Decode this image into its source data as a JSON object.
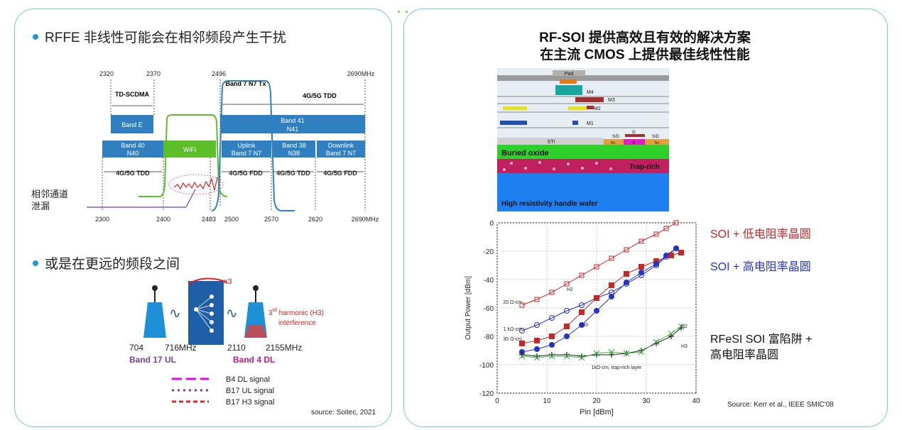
{
  "left": {
    "bullet1": "RFFE 非线性可能会在相邻频段产生干扰",
    "bullet2": "或是在更远的频段之间",
    "source": "source: Soitec, 2021",
    "band_diagram": {
      "top_freqs": [
        "2320",
        "2370",
        "2496",
        "2690MHz"
      ],
      "bottom_freqs": [
        "2300",
        "2400",
        "2483",
        "2500",
        "2570",
        "2620",
        "2690MHz"
      ],
      "td_scdma": "TD-SCDMA",
      "band7_tx": "Band 7 N7 Tx",
      "tdd_top": "4G/5G TDD",
      "band_e": "Band E",
      "band41": [
        "Band 41",
        "N41"
      ],
      "band40": [
        "Band 40",
        "N40"
      ],
      "wifi": "WiFi",
      "uplink": [
        "Uplink",
        "Band 7 N7"
      ],
      "band38": [
        "Band 38",
        "N38"
      ],
      "downlink": [
        "Downlink",
        "Band 7 N7"
      ],
      "bottom_labels": [
        "4G/5G TDD",
        "4G/5G FDD",
        "4G/5G TDD",
        "4G/5G FDD"
      ],
      "leakage": [
        "相邻通道",
        "泄漏"
      ]
    },
    "harmonic": {
      "x3": "x3",
      "h3_sup": "rd",
      "h3_line1_a": "3",
      "h3_line1_b": " harmonic (H3)",
      "h3_line2": "interference",
      "f704": "704",
      "f716": "716MHz",
      "f2110": "2110",
      "f2155": "2155MHz",
      "band17": "Band 17 UL",
      "band4": "Band 4 DL",
      "legend": [
        "B4 DL signal",
        "B17 UL signal",
        "B17 H3 signal"
      ]
    },
    "colors": {
      "band_blue": "#2f7fc1",
      "wifi_green": "#5cbf2a",
      "red": "#d62a2a",
      "magenta": "#e800e8",
      "purple": "#7a3ea1"
    }
  },
  "right": {
    "title_line1": "RF-SOI 提供高效且有效的解决方案",
    "title_line2": "在主流 CMOS 上提供最佳线性性能",
    "cross_section": {
      "pad": "Pad",
      "m4": "M4",
      "m3": "M3",
      "m2": "M2",
      "m1": "M1",
      "sti": "STI",
      "sd1": "S/D",
      "g": "G",
      "sd2": "S/D",
      "np1": "N+",
      "si": "Si",
      "np2": "N+",
      "buried_oxide": "Buried oxide",
      "trap_rich": "Trap-rich",
      "handle": "High resistivity handle wafer"
    },
    "legend": {
      "soi_low": "SOI + 低电阻率晶圆",
      "soi_high": "SOI + 高电阻率晶圆",
      "rfesi_1": "RFeSI SOI 富陷阱 +",
      "rfesi_2": "高电阻率晶圆"
    },
    "source": "Source: Kerr et al., IEEE SMIC'08"
  },
  "chart_data": {
    "type": "line",
    "xlabel": "Pin [dBm]",
    "ylabel": "Output Power [dBm]",
    "xlim": [
      0,
      40
    ],
    "ylim": [
      -120,
      0
    ],
    "xticks": [
      0,
      10,
      20,
      30,
      40
    ],
    "yticks": [
      0,
      -20,
      -40,
      -60,
      -80,
      -100,
      -120
    ],
    "annotations": [
      "H2",
      "H3",
      "20 Ω-cm",
      "1 kΩ-cm",
      "30 Ω-cm",
      "1kΩ-cm, trap-rich layer",
      "H2",
      "H3"
    ],
    "series": [
      {
        "marker": "open-square",
        "color": "#c62828",
        "x": [
          5,
          8,
          11,
          14,
          17,
          20,
          23,
          26,
          29,
          32,
          34,
          36
        ],
        "values": [
          -58,
          -54,
          -49,
          -43,
          -37,
          -31,
          -25,
          -19,
          -13,
          -8,
          -4,
          0
        ]
      },
      {
        "marker": "open-circle",
        "color": "#2733c8",
        "x": [
          5,
          8,
          11,
          14,
          17,
          20,
          23,
          26,
          29,
          32,
          34,
          36
        ],
        "values": [
          -76,
          -72,
          -67,
          -62,
          -58,
          -53,
          -49,
          -43,
          -37,
          -30,
          -24,
          -18
        ]
      },
      {
        "marker": "filled-square",
        "color": "#c62828",
        "x": [
          5,
          8,
          11,
          14,
          17,
          20,
          23,
          26,
          29,
          32,
          35,
          37
        ],
        "values": [
          -85,
          -83,
          -80,
          -73,
          -63,
          -53,
          -44,
          -36,
          -31,
          -27,
          -23,
          -21
        ]
      },
      {
        "marker": "filled-circle",
        "color": "#2733c8",
        "x": [
          5,
          8,
          11,
          14,
          17,
          20,
          23,
          26,
          29,
          32,
          34,
          36
        ],
        "values": [
          -91,
          -89,
          -86,
          -80,
          -72,
          -62,
          -52,
          -42,
          -35,
          -29,
          -23,
          -18
        ]
      },
      {
        "marker": "plus",
        "color": "#222222",
        "x": [
          5,
          8,
          11,
          14,
          17,
          20,
          23,
          26,
          29,
          32,
          35,
          37
        ],
        "values": [
          -93,
          -94,
          -93,
          -93,
          -94,
          -93,
          -93,
          -92,
          -90,
          -85,
          -80,
          -74
        ]
      },
      {
        "marker": "cross",
        "color": "#4caf50",
        "x": [
          5,
          8,
          11,
          14,
          17,
          20,
          23,
          26,
          29,
          32,
          35,
          37
        ],
        "values": [
          -94,
          -95,
          -94,
          -94,
          -95,
          -92,
          -91,
          -92,
          -91,
          -84,
          -78,
          -73
        ]
      }
    ]
  }
}
